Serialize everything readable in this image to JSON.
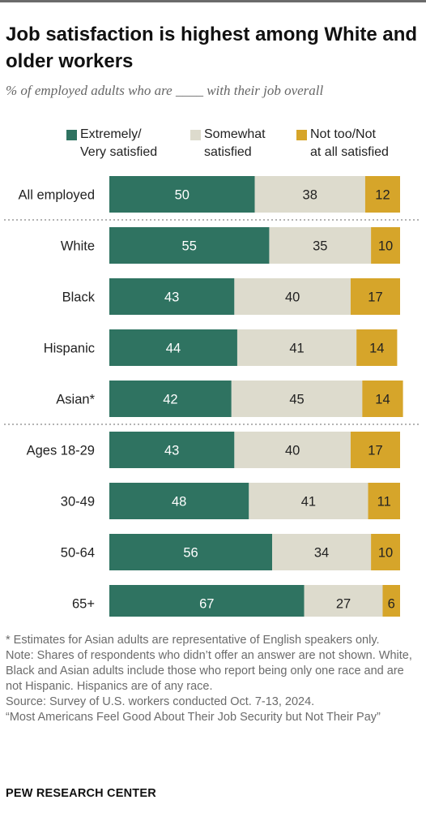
{
  "title": "Job satisfaction is highest among White and older workers",
  "subtitle": "% of employed adults who are ____ with their job overall",
  "legend": [
    {
      "label": "Extremely/\nVery satisfied",
      "color": "#2f7361"
    },
    {
      "label": "Somewhat\nsatisfied",
      "color": "#dddbcd"
    },
    {
      "label": "Not too/Not\nat all satisfied",
      "color": "#d6a52a"
    }
  ],
  "chart_data": {
    "type": "bar",
    "orientation": "horizontal",
    "stacked": true,
    "categories": [
      "All employed",
      "White",
      "Black",
      "Hispanic",
      "Asian*",
      "Ages 18-29",
      "30-49",
      "50-64",
      "65+"
    ],
    "series": [
      {
        "name": "Extremely/Very satisfied",
        "color": "#2f7361",
        "values": [
          50,
          55,
          43,
          44,
          42,
          43,
          48,
          56,
          67
        ]
      },
      {
        "name": "Somewhat satisfied",
        "color": "#dddbcd",
        "values": [
          38,
          35,
          40,
          41,
          45,
          40,
          41,
          34,
          27
        ]
      },
      {
        "name": "Not too/Not at all satisfied",
        "color": "#d6a52a",
        "values": [
          12,
          10,
          17,
          14,
          14,
          17,
          11,
          10,
          6
        ]
      }
    ],
    "group_separators_after": [
      0,
      4
    ],
    "xlim": [
      0,
      100
    ],
    "grid": false
  },
  "notes": [
    "* Estimates for Asian adults are representative of English speakers only.",
    "Note: Shares of respondents who didn’t offer an answer are not shown. White, Black and Asian adults include those who report being only one race and are not Hispanic. Hispanics are of any race.",
    "Source: Survey of U.S. workers conducted Oct. 7-13, 2024.",
    "“Most Americans Feel Good About Their Job Security but Not Their Pay”"
  ],
  "source_label": "PEW RESEARCH CENTER"
}
